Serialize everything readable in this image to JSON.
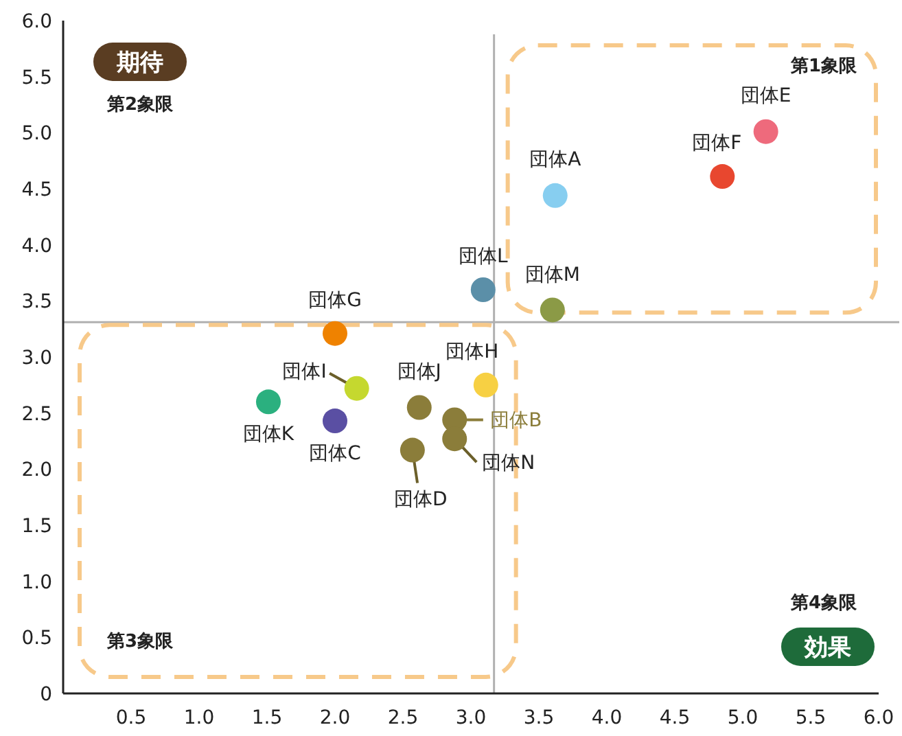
{
  "chart_data": {
    "type": "scatter",
    "marker": "circle",
    "x": [
      3.62,
      5.17,
      4.85,
      3.09,
      3.6,
      2.0,
      3.11,
      2.16,
      2.62,
      1.51,
      2.0,
      2.88,
      2.88,
      2.57
    ],
    "values": [
      4.44,
      5.01,
      4.61,
      3.6,
      3.42,
      3.21,
      2.75,
      2.72,
      2.55,
      2.6,
      2.43,
      2.44,
      2.27,
      2.17
    ],
    "colors": [
      "#87cef0",
      "#ee6a7c",
      "#e8472f",
      "#5b8fa8",
      "#8b9a46",
      "#ef8200",
      "#f7d043",
      "#c5d82f",
      "#8b7d3a",
      "#2bb07f",
      "#5a4fa3",
      "#8b7d3a",
      "#8b7d3a",
      "#8b7d3a"
    ],
    "value_labels": [
      "団体A",
      "団体E",
      "団体F",
      "団体L",
      "団体M",
      "団体G",
      "団体H",
      "団体I",
      "団体J",
      "団体K",
      "団体C",
      "団体B",
      "団体N",
      "団体D"
    ],
    "xlim": [
      0,
      6
    ],
    "ylim": [
      0,
      6
    ],
    "xticks": [
      {
        "value": 0.5,
        "label": "0.5"
      },
      {
        "value": 1,
        "label": "1.0"
      },
      {
        "value": 1.5,
        "label": "1.5"
      },
      {
        "value": 2,
        "label": "2.0"
      },
      {
        "value": 2.5,
        "label": "2.5"
      },
      {
        "value": 3,
        "label": "3.0"
      },
      {
        "value": 3.5,
        "label": "3.5"
      },
      {
        "value": 4,
        "label": "4.0"
      },
      {
        "value": 4.5,
        "label": "4.5"
      },
      {
        "value": 5,
        "label": "5.0"
      },
      {
        "value": 5.5,
        "label": "5.5"
      },
      {
        "value": 6,
        "label": "6.0"
      }
    ],
    "yticks": [
      {
        "value": 0,
        "label": "0"
      },
      {
        "value": 0.5,
        "label": "0.5"
      },
      {
        "value": 1,
        "label": "1.0"
      },
      {
        "value": 1.5,
        "label": "1.5"
      },
      {
        "value": 2,
        "label": "2.0"
      },
      {
        "value": 2.5,
        "label": "2.5"
      },
      {
        "value": 3,
        "label": "3.0"
      },
      {
        "value": 3.5,
        "label": "3.5"
      },
      {
        "value": 4,
        "label": "4.0"
      },
      {
        "value": 4.5,
        "label": "4.5"
      },
      {
        "value": 5,
        "label": "5.0"
      },
      {
        "value": 5.5,
        "label": "5.5"
      },
      {
        "value": 6,
        "label": "6.0"
      }
    ],
    "ref_lines": [
      {
        "axis": "x",
        "value": 3.17,
        "color": "#b0b0b0"
      },
      {
        "axis": "y",
        "value": 3.31,
        "color": "#b0b0b0"
      }
    ],
    "annotations": [
      "期待",
      "第2象限",
      "第1象限",
      "第3象限",
      "第4象限",
      "効果"
    ]
  }
}
